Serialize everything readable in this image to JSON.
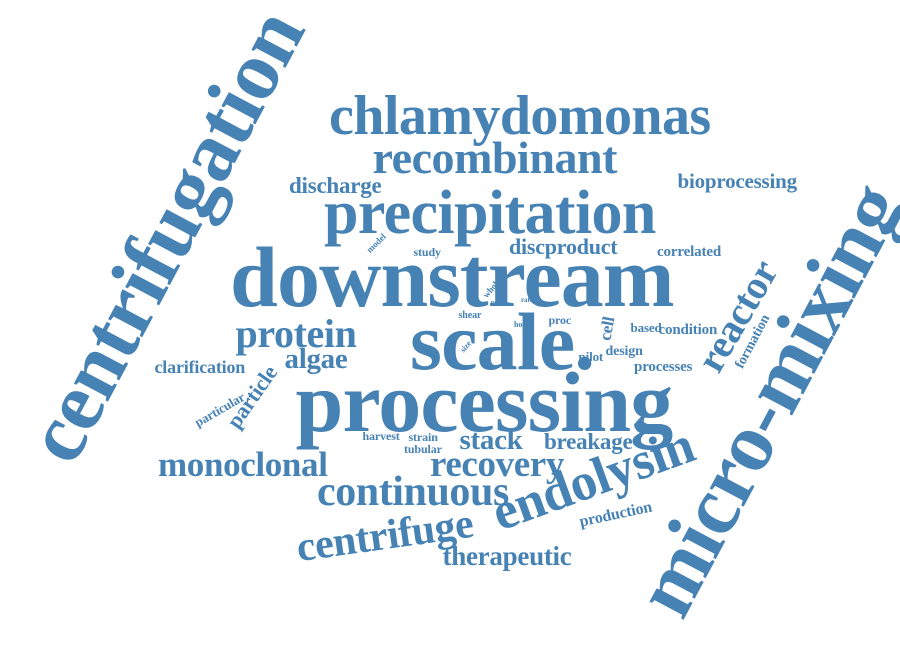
{
  "color": "#4682b4",
  "words": [
    "centrifugation",
    "micro-mixing",
    "chlamydomonas",
    "recombinant",
    "discharge",
    "bioprocessing",
    "precipitation",
    "model",
    "study",
    "discproduct",
    "correlated",
    "downstream",
    "reactor",
    "whole",
    "rate",
    "final",
    "shear",
    "host",
    "proc",
    "cell",
    "protein",
    "scale.",
    "based",
    "condition",
    "size",
    "formation",
    "clarification",
    "algae",
    "pilot",
    "design",
    "processes",
    "particular",
    "particle",
    "processing",
    "harvest",
    "strain",
    "tubular",
    "stack",
    "breakage",
    "monoclonal",
    "recovery",
    "endolysin",
    "continuous",
    "production",
    "centrifuge",
    "therapeutic"
  ]
}
